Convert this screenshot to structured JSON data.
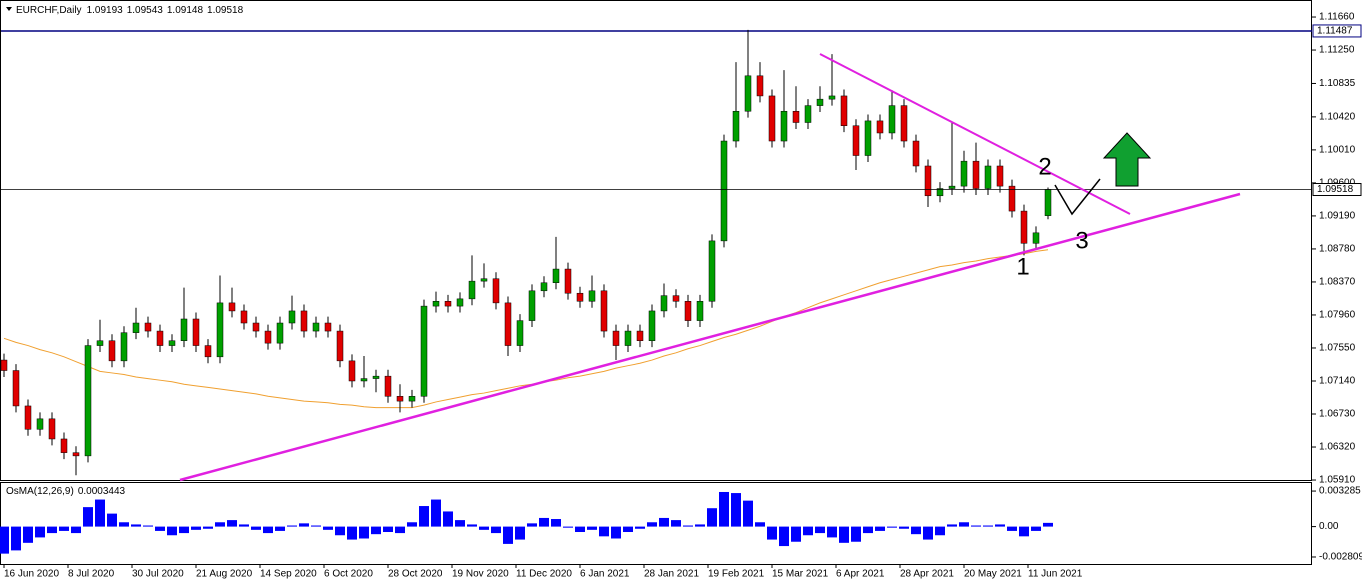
{
  "chart_data": {
    "type": "candlestick",
    "symbol": "EURCHF,Daily",
    "up_color": "#00a000",
    "down_color": "#e00000",
    "wick_color": "#000000",
    "ylim": [
      1.05898,
      1.11859
    ],
    "yticks": [
      {
        "value": 1.1166,
        "label": "1.11660"
      },
      {
        "value": 1.1125,
        "label": "1.11250"
      },
      {
        "value": 1.10835,
        "label": "1.10835"
      },
      {
        "value": 1.1042,
        "label": "1.10420"
      },
      {
        "value": 1.1001,
        "label": "1.10010"
      },
      {
        "value": 1.096,
        "label": "1.09600"
      },
      {
        "value": 1.0919,
        "label": "1.09190"
      },
      {
        "value": 1.0878,
        "label": "1.08780"
      },
      {
        "value": 1.0837,
        "label": "1.08370"
      },
      {
        "value": 1.0796,
        "label": "1.07960"
      },
      {
        "value": 1.0755,
        "label": "1.07550"
      },
      {
        "value": 1.0714,
        "label": "1.07140"
      },
      {
        "value": 1.0673,
        "label": "1.06730"
      },
      {
        "value": 1.0632,
        "label": "1.06320"
      },
      {
        "value": 1.0591,
        "label": "1.05910"
      }
    ],
    "levels": [
      {
        "value": 1.11487,
        "color": "#000080"
      }
    ],
    "x_labels": [
      "16 Jun 2020",
      "8 Jul 2020",
      "30 Jul 2020",
      "21 Aug 2020",
      "14 Sep 2020",
      "6 Oct 2020",
      "28 Oct 2020",
      "19 Nov 2020",
      "11 Dec 2020",
      "6 Jan 2021",
      "28 Jan 2021",
      "19 Feb 2021",
      "15 Mar 2021",
      "6 Apr 2021",
      "28 Apr 2021",
      "20 May 2021",
      "11 Jun 2021"
    ],
    "candles": [
      [
        1.074,
        1.0748,
        1.0719,
        1.0727
      ],
      [
        1.0727,
        1.0735,
        1.0675,
        1.0683
      ],
      [
        1.0683,
        1.0691,
        1.0646,
        1.0654
      ],
      [
        1.0654,
        1.0675,
        1.0646,
        1.0667
      ],
      [
        1.0667,
        1.0675,
        1.0634,
        1.0642
      ],
      [
        1.0642,
        1.065,
        1.0617,
        1.0625
      ],
      [
        1.0625,
        1.0633,
        1.0597,
        1.0621
      ],
      [
        1.0621,
        1.0766,
        1.0613,
        1.0758
      ],
      [
        1.0758,
        1.079,
        1.075,
        1.0764
      ],
      [
        1.0764,
        1.0772,
        1.0731,
        1.0739
      ],
      [
        1.0739,
        1.0782,
        1.0731,
        1.0774
      ],
      [
        1.0774,
        1.0805,
        1.0766,
        1.0786
      ],
      [
        1.0786,
        1.0794,
        1.0768,
        1.0776
      ],
      [
        1.0776,
        1.0784,
        1.075,
        1.0758
      ],
      [
        1.0758,
        1.0772,
        1.075,
        1.0764
      ],
      [
        1.0764,
        1.083,
        1.0756,
        1.0791
      ],
      [
        1.0791,
        1.0799,
        1.075,
        1.0758
      ],
      [
        1.0758,
        1.0766,
        1.0736,
        1.0744
      ],
      [
        1.0744,
        1.0845,
        1.0736,
        1.0811
      ],
      [
        1.0811,
        1.083,
        1.0793,
        1.0801
      ],
      [
        1.0801,
        1.0809,
        1.0778,
        1.0786
      ],
      [
        1.0786,
        1.0794,
        1.0768,
        1.0776
      ],
      [
        1.0776,
        1.0784,
        1.0753,
        1.0761
      ],
      [
        1.0761,
        1.0794,
        1.0753,
        1.0786
      ],
      [
        1.0786,
        1.082,
        1.0778,
        1.0801
      ],
      [
        1.0801,
        1.0809,
        1.0768,
        1.0776
      ],
      [
        1.0776,
        1.0794,
        1.0768,
        1.0786
      ],
      [
        1.0786,
        1.0794,
        1.0768,
        1.0776
      ],
      [
        1.0776,
        1.0784,
        1.0731,
        1.0739
      ],
      [
        1.0739,
        1.0747,
        1.0706,
        1.0714
      ],
      [
        1.0714,
        1.0745,
        1.0706,
        1.0717
      ],
      [
        1.0717,
        1.0728,
        1.07,
        1.072
      ],
      [
        1.072,
        1.0728,
        1.0687,
        1.0695
      ],
      [
        1.0695,
        1.071,
        1.0675,
        1.0689
      ],
      [
        1.0689,
        1.0703,
        1.0681,
        1.0695
      ],
      [
        1.0695,
        1.0815,
        1.0687,
        1.0807
      ],
      [
        1.0807,
        1.0825,
        1.0799,
        1.0813
      ],
      [
        1.0813,
        1.0821,
        1.0799,
        1.0807
      ],
      [
        1.0807,
        1.0824,
        1.0799,
        1.0816
      ],
      [
        1.0816,
        1.087,
        1.0808,
        1.0838
      ],
      [
        1.0838,
        1.086,
        1.083,
        1.0841
      ],
      [
        1.0841,
        1.0849,
        1.0803,
        1.0811
      ],
      [
        1.0811,
        1.0819,
        1.0745,
        1.0758
      ],
      [
        1.0758,
        1.0797,
        1.075,
        1.0789
      ],
      [
        1.0789,
        1.0834,
        1.0781,
        1.0826
      ],
      [
        1.0826,
        1.0844,
        1.0818,
        1.0836
      ],
      [
        1.0836,
        1.0893,
        1.0828,
        1.0853
      ],
      [
        1.0853,
        1.0861,
        1.0815,
        1.0823
      ],
      [
        1.0823,
        1.0831,
        1.0805,
        1.0813
      ],
      [
        1.0813,
        1.0845,
        1.0805,
        1.0826
      ],
      [
        1.0826,
        1.0834,
        1.0768,
        1.0776
      ],
      [
        1.0776,
        1.0784,
        1.074,
        1.0758
      ],
      [
        1.0758,
        1.0784,
        1.075,
        1.0776
      ],
      [
        1.0776,
        1.0784,
        1.0756,
        1.0764
      ],
      [
        1.0764,
        1.0809,
        1.0756,
        1.0801
      ],
      [
        1.0801,
        1.0835,
        1.0793,
        1.082
      ],
      [
        1.082,
        1.0828,
        1.0805,
        1.0813
      ],
      [
        1.0813,
        1.0821,
        1.0781,
        1.0789
      ],
      [
        1.0789,
        1.0821,
        1.0781,
        1.0813
      ],
      [
        1.0813,
        1.0896,
        1.0805,
        1.0888
      ],
      [
        1.0888,
        1.102,
        1.088,
        1.1012
      ],
      [
        1.1012,
        1.111,
        1.1004,
        1.1049
      ],
      [
        1.1049,
        1.115,
        1.1041,
        1.1093
      ],
      [
        1.1093,
        1.111,
        1.106,
        1.1068
      ],
      [
        1.1068,
        1.1076,
        1.1004,
        1.1012
      ],
      [
        1.1012,
        1.11,
        1.1004,
        1.1049
      ],
      [
        1.1049,
        1.108,
        1.1027,
        1.1035
      ],
      [
        1.1035,
        1.1064,
        1.1027,
        1.1056
      ],
      [
        1.1056,
        1.108,
        1.1048,
        1.1064
      ],
      [
        1.1064,
        1.112,
        1.1056,
        1.1068
      ],
      [
        1.1068,
        1.1076,
        1.1023,
        1.1031
      ],
      [
        1.1031,
        1.1039,
        1.0976,
        1.0994
      ],
      [
        1.0994,
        1.1045,
        1.0986,
        1.1037
      ],
      [
        1.1037,
        1.1045,
        1.1014,
        1.1022
      ],
      [
        1.1022,
        1.1075,
        1.1014,
        1.1056
      ],
      [
        1.1056,
        1.1064,
        1.1004,
        1.1012
      ],
      [
        1.1012,
        1.102,
        1.0973,
        1.0981
      ],
      [
        1.0981,
        1.0989,
        1.093,
        1.0944
      ],
      [
        1.0944,
        1.0961,
        1.0936,
        1.0953
      ],
      [
        1.0953,
        1.1035,
        1.0945,
        1.0956
      ],
      [
        1.0956,
        1.1,
        1.0948,
        1.0987
      ],
      [
        1.0987,
        1.101,
        1.0945,
        1.0953
      ],
      [
        1.0953,
        1.0989,
        1.0945,
        1.0981
      ],
      [
        1.0981,
        1.0989,
        1.0948,
        1.0956
      ],
      [
        1.0956,
        1.0964,
        1.0917,
        1.0925
      ],
      [
        1.0925,
        1.0933,
        1.087,
        1.0885
      ],
      [
        1.0885,
        1.0906,
        1.0877,
        1.0898
      ],
      [
        1.09193,
        1.09543,
        1.09148,
        1.09518
      ]
    ],
    "ma": {
      "color": "#f0a030",
      "values": [
        1.0767,
        1.0762,
        1.0758,
        1.0753,
        1.0749,
        1.0744,
        1.0738,
        1.0732,
        1.0726,
        1.0724,
        1.0722,
        1.0719,
        1.0717,
        1.0715,
        1.0713,
        1.071,
        1.0708,
        1.0706,
        1.0704,
        1.0702,
        1.07,
        1.0698,
        1.0695,
        1.0693,
        1.0691,
        1.0689,
        1.0688,
        1.0687,
        1.0685,
        1.0684,
        1.0682,
        1.0681,
        1.0681,
        1.0681,
        1.0681,
        1.0684,
        1.0688,
        1.0691,
        1.0694,
        1.0697,
        1.0699,
        1.0702,
        1.0705,
        1.0708,
        1.071,
        1.0713,
        1.0715,
        1.0718,
        1.072,
        1.0723,
        1.0726,
        1.073,
        1.0733,
        1.0736,
        1.074,
        1.0745,
        1.0749,
        1.0754,
        1.0758,
        1.0763,
        1.0768,
        1.0772,
        1.0777,
        1.0782,
        1.0788,
        1.0794,
        1.0799,
        1.0805,
        1.0811,
        1.0816,
        1.0821,
        1.0826,
        1.0831,
        1.0836,
        1.084,
        1.0844,
        1.0848,
        1.0852,
        1.0856,
        1.0858,
        1.0861,
        1.0863,
        1.0866,
        1.0868,
        1.087,
        1.0872,
        1.0875,
        1.0877
      ]
    },
    "annotations": [
      "1",
      "2",
      "3"
    ],
    "osma": {
      "title": "OsMA(12,26,9)",
      "color": "#0000ff",
      "ylim": [
        -0.00355,
        0.00403
      ],
      "yticks": [
        0.003285,
        {
          "value": 0,
          "label": "0.00"
        },
        -0.002809
      ],
      "values": [
        -0.0025,
        -0.0022,
        -0.0015,
        -0.001,
        -0.0006,
        -0.0004,
        -0.0006,
        0.0018,
        0.0025,
        0.0012,
        0.0004,
        0.0002,
        0.0001,
        -0.0004,
        -0.0008,
        -0.0006,
        -0.0003,
        -0.0002,
        0.0004,
        0.0006,
        0.0002,
        -0.0003,
        -0.0006,
        -0.0004,
        0.0001,
        0.0003,
        0.0001,
        -0.0003,
        -0.0008,
        -0.0012,
        -0.0011,
        -0.0007,
        -0.0005,
        -0.0006,
        0.0004,
        0.0019,
        0.0025,
        0.0014,
        0.0006,
        0.0002,
        -0.0003,
        -0.0006,
        -0.0016,
        -0.0012,
        0.0003,
        0.0008,
        0.0007,
        -0.0001,
        -0.0005,
        -0.0003,
        -0.0009,
        -0.0011,
        -0.0005,
        -0.0002,
        0.0004,
        0.0008,
        0.0006,
        0.0001,
        0.0002,
        0.0017,
        0.0032,
        0.0031,
        0.0024,
        0.0004,
        -0.0012,
        -0.0018,
        -0.0014,
        -0.0008,
        -0.0006,
        -0.001,
        -0.0015,
        -0.0014,
        -0.0006,
        -0.0004,
        -0.0001,
        -0.0002,
        -0.0007,
        -0.0012,
        -0.0008,
        0.0002,
        0.0004,
        0.0001,
        0.0001,
        0.0002,
        -0.0004,
        -0.0009,
        -0.0004,
        0.0003443
      ]
    }
  }
}
